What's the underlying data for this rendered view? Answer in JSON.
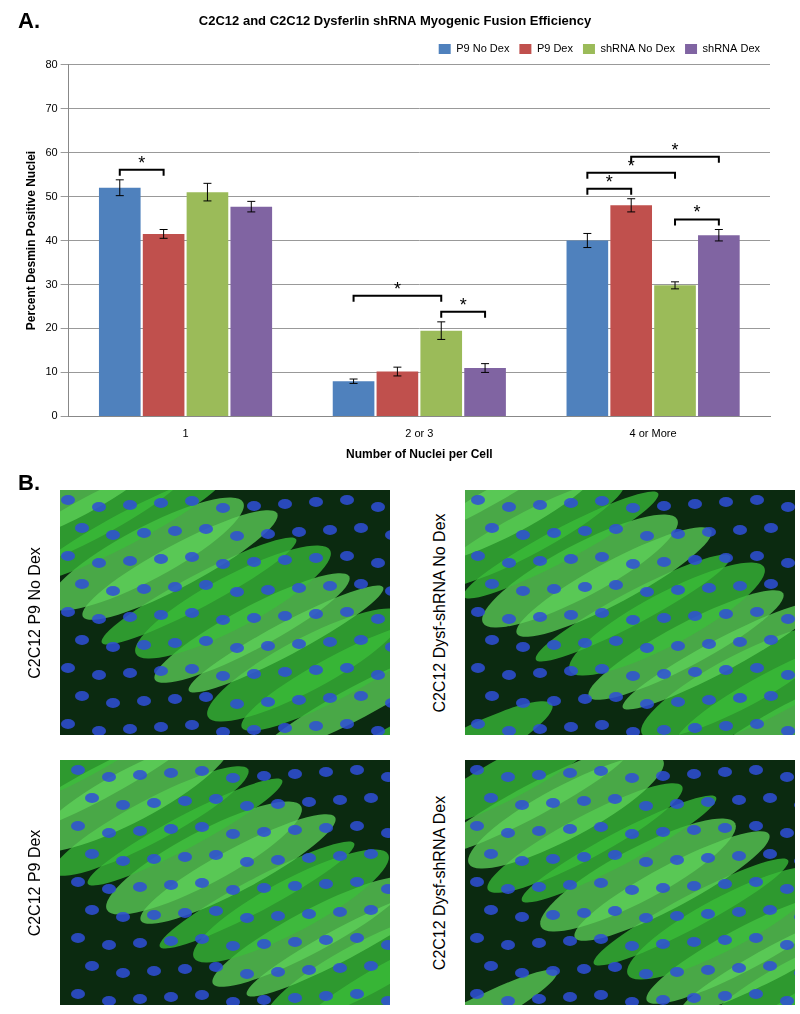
{
  "chart_data": {
    "type": "bar",
    "title": "C2C12 and C2C12 Dysferlin shRNA Myogenic Fusion Efficiency",
    "x_label": "Number of Nuclei per Cell",
    "y_label": "Percent Desmin Positive Nuclei",
    "categories": [
      "1",
      "2 or 3",
      "4 or More"
    ],
    "series": [
      {
        "name": "P9 No Dex",
        "color": "#4f81bd",
        "values": [
          52,
          8,
          40
        ],
        "errors": [
          1.8,
          0.5,
          1.6
        ]
      },
      {
        "name": "P9 Dex",
        "color": "#c0504d",
        "values": [
          41.5,
          10.2,
          48
        ],
        "errors": [
          1,
          1,
          1.5
        ]
      },
      {
        "name": "shRNA No Dex",
        "color": "#9bbb59",
        "values": [
          51,
          19.5,
          29.8
        ],
        "errors": [
          2,
          2,
          0.8
        ]
      },
      {
        "name": "shRNA Dex",
        "color": "#8064a2",
        "values": [
          47.7,
          11,
          41.2
        ],
        "errors": [
          1.2,
          1,
          1.3
        ]
      }
    ],
    "ylim": [
      0,
      80
    ],
    "yticks": [
      0,
      10,
      20,
      30,
      40,
      50,
      60,
      70,
      80
    ],
    "grid": true,
    "legend": "upper right",
    "significance": [
      {
        "category": "1",
        "from": "P9 No Dex",
        "to": "P9 Dex",
        "label": "*"
      },
      {
        "category": "2 or 3",
        "from": "P9 No Dex",
        "to": "shRNA No Dex",
        "label": "*"
      },
      {
        "category": "2 or 3",
        "from": "shRNA No Dex",
        "to": "shRNA Dex",
        "label": "*"
      },
      {
        "category": "4 or More",
        "from": "P9 No Dex",
        "to": "shRNA No Dex",
        "label": "*"
      },
      {
        "category": "4 or More",
        "from": "P9 No Dex",
        "to": "P9 Dex",
        "label": "*"
      },
      {
        "category": "4 or More",
        "from": "P9 Dex",
        "to": "shRNA Dex",
        "label": "*"
      },
      {
        "category": "4 or More",
        "from": "shRNA No Dex",
        "to": "shRNA Dex",
        "label": "*"
      }
    ]
  },
  "panel_labels": [
    "A.",
    "B."
  ],
  "images": [
    {
      "label": "C2C12 P9 No Dex"
    },
    {
      "label": "C2C12 Dysf-shRNA No Dex"
    },
    {
      "label": "C2C12 P9 Dex"
    },
    {
      "label": "C2C12 Dysf-shRNA Dex"
    }
  ]
}
